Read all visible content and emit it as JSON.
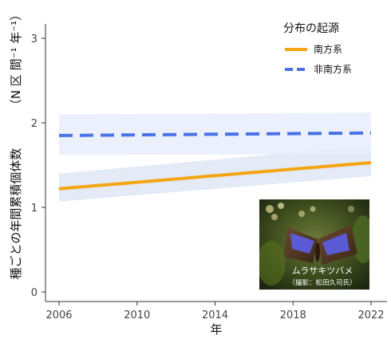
{
  "chart_data": {
    "type": "line",
    "title": "",
    "xlabel": "年",
    "ylabel_main": "種ごとの年間累積個体数",
    "ylabel_paren": "（N 区 間⁻¹ 年⁻¹）",
    "x_ticks": [
      2006,
      2010,
      2014,
      2018,
      2022
    ],
    "y_ticks": [
      0,
      1,
      2,
      3
    ],
    "xlim": [
      2005,
      2023
    ],
    "ylim": [
      -0.05,
      3.1
    ],
    "legend": {
      "title": "分布の起源",
      "placement": "top-right"
    },
    "series": [
      {
        "name": "南方系",
        "color": "#f5a511",
        "band_color": "#dfe6f5",
        "line_style": "solid",
        "x": [
          2006,
          2022
        ],
        "y": [
          1.22,
          1.53
        ],
        "ci_lower": [
          1.07,
          1.37
        ],
        "ci_upper": [
          1.4,
          1.73
        ]
      },
      {
        "name": "非南方系",
        "color": "#4a72e6",
        "band_color": "#e7edfb",
        "line_style": "dashed",
        "x": [
          2006,
          2022
        ],
        "y": [
          1.85,
          1.88
        ],
        "ci_lower": [
          1.62,
          1.63
        ],
        "ci_upper": [
          2.1,
          2.12
        ]
      }
    ],
    "grid": false
  },
  "photo": {
    "caption": "ムラサキツバメ",
    "credit": "（撮影：松田久司氏）",
    "icon": "butterfly-photo"
  }
}
